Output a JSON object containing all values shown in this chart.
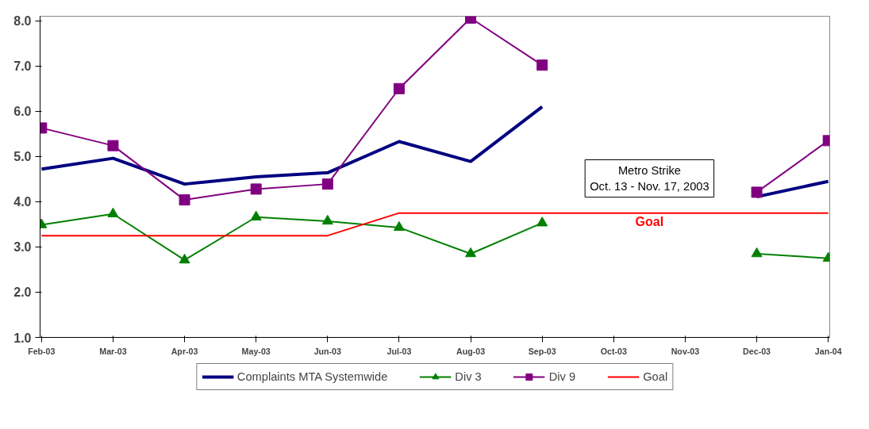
{
  "chart_data": {
    "type": "line",
    "categories": [
      "Feb-03",
      "Mar-03",
      "Apr-03",
      "May-03",
      "Jun-03",
      "Jul-03",
      "Aug-03",
      "Sep-03",
      "Oct-03",
      "Nov-03",
      "Dec-03",
      "Jan-04"
    ],
    "series": [
      {
        "name": "Complaints MTA Systemwide",
        "color": "#000080",
        "marker": "none",
        "values": [
          4.72,
          4.96,
          4.39,
          4.55,
          4.64,
          5.33,
          4.89,
          6.1,
          null,
          null,
          4.11,
          4.45
        ]
      },
      {
        "name": "Div 3",
        "color": "#008000",
        "marker": "triangle",
        "values": [
          3.49,
          3.73,
          2.71,
          3.66,
          3.57,
          3.43,
          2.85,
          3.53,
          null,
          null,
          2.85,
          2.75
        ]
      },
      {
        "name": "Div 9",
        "color": "#800080",
        "marker": "square",
        "values": [
          5.63,
          5.24,
          4.04,
          4.28,
          4.39,
          6.5,
          8.06,
          7.02,
          null,
          null,
          4.21,
          5.35
        ]
      },
      {
        "name": "Goal",
        "color": "#ff0000",
        "marker": "none",
        "values": [
          3.25,
          3.25,
          3.25,
          3.25,
          3.25,
          3.75,
          3.75,
          3.75,
          3.75,
          3.75,
          3.75,
          3.75
        ]
      }
    ],
    "ylim": [
      1.0,
      8.1
    ],
    "yticks": [
      {
        "value": 1,
        "label": "1.0"
      },
      {
        "value": 2,
        "label": "2.0"
      },
      {
        "value": 3,
        "label": "3.0"
      },
      {
        "value": 4,
        "label": "4.0"
      },
      {
        "value": 5,
        "label": "5.0"
      },
      {
        "value": 6,
        "label": "6.0"
      },
      {
        "value": 7,
        "label": "7.0"
      },
      {
        "value": 8,
        "label": "8.0"
      }
    ],
    "annotations": [
      "Metro Strike\nOct. 13 - Nov. 17, 2003",
      "Goal"
    ],
    "grid": false,
    "legend": "bottom"
  }
}
